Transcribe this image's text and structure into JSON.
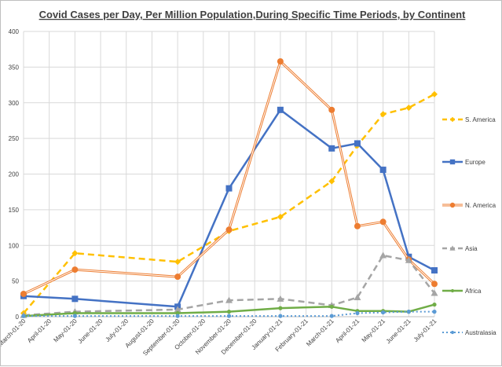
{
  "chart_data": {
    "type": "line",
    "title": "Covid Cases per Day, Per Million Population,During Specific Time Periods, by Continent",
    "xlabel": "",
    "ylabel": "",
    "ylim": [
      0,
      400
    ],
    "yticks": [
      0,
      50,
      100,
      150,
      200,
      250,
      300,
      350,
      400
    ],
    "grid": "vertical-and-horizontal",
    "legend": "right",
    "categories": [
      "March-01-20",
      "April-01-20",
      "May-01-20",
      "June-01-20",
      "July-01-20",
      "August-01-20",
      "September-01-20",
      "October-01-20",
      "November-01-20",
      "December-01-20",
      "January-01-21",
      "February-01-21",
      "March-01-21",
      "April-01-21",
      "May-01-21",
      "June-01-21",
      "July-01-21"
    ],
    "series": [
      {
        "name": "S. America",
        "color": "#FFC000",
        "style": "dashed",
        "marker": "diamond",
        "values": [
          5,
          null,
          89,
          null,
          null,
          null,
          77,
          null,
          120,
          null,
          140,
          null,
          190,
          240,
          284,
          293,
          312
        ]
      },
      {
        "name": "Europe",
        "color": "#4472C4",
        "style": "solid",
        "marker": "square",
        "values": [
          29,
          null,
          25,
          null,
          null,
          null,
          14,
          null,
          180,
          null,
          290,
          null,
          236,
          243,
          206,
          84,
          65
        ]
      },
      {
        "name": "N. America",
        "color": "#ED7D31",
        "style": "double",
        "marker": "circle",
        "values": [
          32,
          null,
          66,
          null,
          null,
          null,
          56,
          null,
          122,
          null,
          358,
          null,
          290,
          127,
          133,
          80,
          46
        ]
      },
      {
        "name": "Asia",
        "color": "#A5A5A5",
        "style": "dashed",
        "marker": "triangle",
        "values": [
          2,
          null,
          7,
          null,
          null,
          null,
          10,
          null,
          23,
          null,
          25,
          null,
          16,
          27,
          86,
          79,
          33
        ]
      },
      {
        "name": "Africa",
        "color": "#70AD47",
        "style": "solid",
        "marker": "dot",
        "values": [
          1,
          null,
          5,
          null,
          null,
          null,
          5,
          null,
          7,
          null,
          12,
          null,
          14,
          8,
          8,
          7,
          17
        ]
      },
      {
        "name": "Australasia",
        "color": "#5B9BD5",
        "style": "dotted",
        "marker": "dot",
        "values": [
          1,
          null,
          1,
          null,
          null,
          null,
          1,
          null,
          1,
          null,
          1,
          null,
          1,
          5,
          6,
          7,
          7
        ]
      }
    ]
  }
}
